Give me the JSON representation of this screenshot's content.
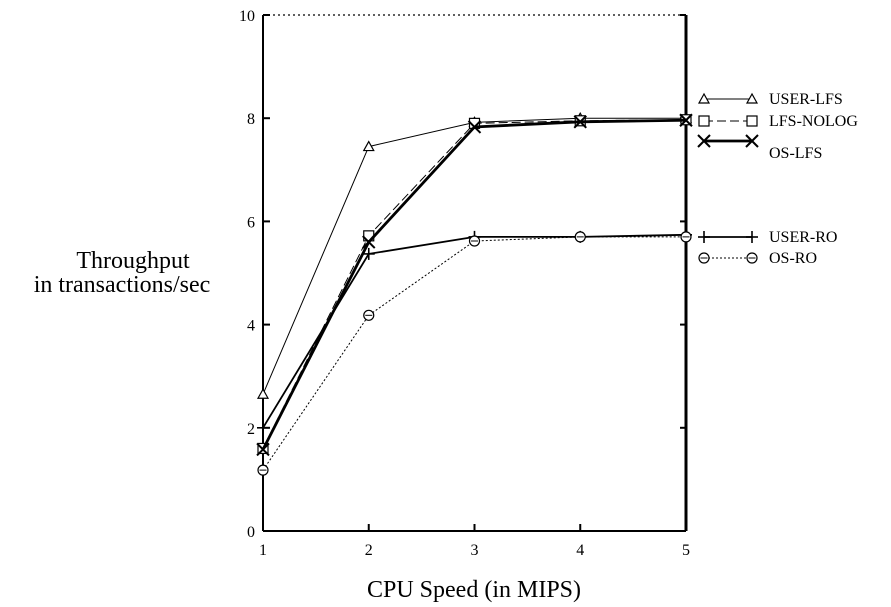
{
  "chart_data": {
    "type": "line",
    "xlabel": "CPU Speed (in MIPS)",
    "ylabel_line1": "Throughput",
    "ylabel_line2": "in transactions/sec",
    "xlim": [
      1,
      5
    ],
    "ylim": [
      0,
      10
    ],
    "x_ticks": [
      "1",
      "2",
      "3",
      "4",
      "5"
    ],
    "y_ticks": [
      "0",
      "2",
      "4",
      "6",
      "8",
      "10"
    ],
    "x": [
      1,
      2,
      3,
      4,
      5
    ],
    "series": [
      {
        "name": "USER-LFS",
        "values": [
          2.65,
          7.45,
          7.92,
          8.0,
          8.0
        ],
        "marker": "triangle",
        "dash": "solid",
        "weight": "thin"
      },
      {
        "name": "LFS-NOLOG",
        "values": [
          1.6,
          5.72,
          7.9,
          7.95,
          7.97
        ],
        "marker": "square",
        "dash": "dashed",
        "weight": "thin"
      },
      {
        "name": "OS-LFS",
        "values": [
          1.58,
          5.6,
          7.83,
          7.93,
          7.96
        ],
        "marker": "x",
        "dash": "solid",
        "weight": "thick"
      },
      {
        "name": "USER-RO",
        "values": [
          2.0,
          5.37,
          5.7,
          5.7,
          5.74
        ],
        "marker": "plus",
        "dash": "solid",
        "weight": "medium"
      },
      {
        "name": "OS-RO",
        "values": [
          1.18,
          4.18,
          5.62,
          5.7,
          5.7
        ],
        "marker": "circle",
        "dash": "dotted",
        "weight": "thin"
      }
    ],
    "legend_placement": "right"
  }
}
